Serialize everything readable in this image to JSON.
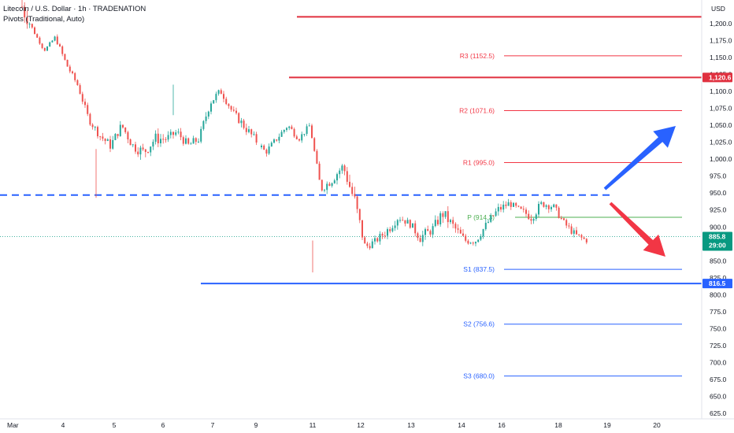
{
  "legend": {
    "symbol_line": "Litecoin / U.S. Dollar · 1h · TRADENATION",
    "indicator_line": "Pivots (Traditional, Auto)"
  },
  "currency": "USD",
  "colors": {
    "up": "#26a69a",
    "down": "#ef5350",
    "red_level": "#e0303f",
    "blue_level": "#2962ff",
    "pivot_p": "#4caf50",
    "pivot_r": "#f23645",
    "pivot_s": "#2962ff",
    "arrow_up": "#2962ff",
    "arrow_down": "#f23645",
    "price_tag": "#089981"
  },
  "chart_data": {
    "type": "candlestick",
    "y_axis": {
      "min": 625,
      "max": 1200,
      "ticks": [
        "1,200.0",
        "1,175.0",
        "1,150.0",
        "1,125.0",
        "1,100.0",
        "1,075.0",
        "1,050.0",
        "1,025.0",
        "1,000.0",
        "975.0",
        "950.0",
        "925.0",
        "900.0",
        "875.0",
        "850.0",
        "825.0",
        "800.0",
        "775.0",
        "750.0",
        "725.0",
        "700.0",
        "675.0",
        "650.0",
        "625.0"
      ]
    },
    "x_axis": {
      "labels": [
        "Mar",
        "4",
        "5",
        "6",
        "7",
        "9",
        "11",
        "12",
        "13",
        "14",
        "16",
        "18",
        "19",
        "20"
      ]
    },
    "last_price": "885.8",
    "countdown": "29:00",
    "horizontal_levels": [
      {
        "value": 1210,
        "style": "solid",
        "color": "red_level"
      },
      {
        "value": 1120.6,
        "style": "solid",
        "color": "red_level",
        "tag": "1,120.6"
      },
      {
        "value": 947,
        "style": "dashed",
        "color": "blue_level"
      },
      {
        "value": 816.5,
        "style": "solid",
        "color": "blue_level",
        "tag": "816.5"
      }
    ],
    "pivots": [
      {
        "name": "R3",
        "label": "R3 (1152.5)",
        "value": 1152.5,
        "color": "pivot_r"
      },
      {
        "name": "R2",
        "label": "R2 (1071.6)",
        "value": 1071.6,
        "color": "pivot_r"
      },
      {
        "name": "R1",
        "label": "R1 (995.0)",
        "value": 995.0,
        "color": "pivot_r"
      },
      {
        "name": "P",
        "label": "P (914.3)",
        "value": 914.3,
        "color": "pivot_p"
      },
      {
        "name": "S1",
        "label": "S1 (837.5)",
        "value": 837.5,
        "color": "pivot_s"
      },
      {
        "name": "S2",
        "label": "S2 (756.6)",
        "value": 756.6,
        "color": "pivot_s"
      },
      {
        "name": "S3",
        "label": "S3 (680.0)",
        "value": 680.0,
        "color": "pivot_s"
      }
    ],
    "price_path": [
      [
        1225,
        24
      ],
      [
        1190,
        3
      ],
      [
        1160,
        2
      ],
      [
        1180,
        4
      ],
      [
        1140,
        6
      ],
      [
        1110,
        4
      ],
      [
        1060,
        7
      ],
      [
        1035,
        7
      ],
      [
        1020,
        9
      ],
      [
        1050,
        8
      ],
      [
        1020,
        10
      ],
      [
        1010,
        11
      ],
      [
        1030,
        12
      ],
      [
        1030,
        8
      ],
      [
        1040,
        7
      ],
      [
        1020,
        9
      ],
      [
        1030,
        8
      ],
      [
        1085,
        10
      ],
      [
        1100,
        8
      ],
      [
        1070,
        6
      ],
      [
        1050,
        9
      ],
      [
        1030,
        8
      ],
      [
        1010,
        6
      ],
      [
        1030,
        6
      ],
      [
        1050,
        7
      ],
      [
        1030,
        5
      ],
      [
        1050,
        5
      ],
      [
        955,
        6
      ],
      [
        970,
        10
      ],
      [
        990,
        8
      ],
      [
        940,
        20
      ],
      [
        870,
        8
      ],
      [
        880,
        6
      ],
      [
        895,
        10
      ],
      [
        915,
        8
      ],
      [
        905,
        6
      ],
      [
        885,
        12
      ],
      [
        895,
        8
      ],
      [
        920,
        12
      ],
      [
        900,
        10
      ],
      [
        880,
        8
      ],
      [
        880,
        8
      ],
      [
        905,
        7
      ],
      [
        925,
        9
      ],
      [
        935,
        6
      ],
      [
        925,
        5
      ],
      [
        915,
        10
      ],
      [
        935,
        8
      ],
      [
        930,
        7
      ],
      [
        905,
        6
      ],
      [
        888,
        7
      ],
      [
        880,
        5
      ]
    ],
    "projection_arrows": [
      {
        "direction": "up",
        "from": 955,
        "to": 1050
      },
      {
        "direction": "down",
        "from": 940,
        "to": 855
      }
    ]
  }
}
